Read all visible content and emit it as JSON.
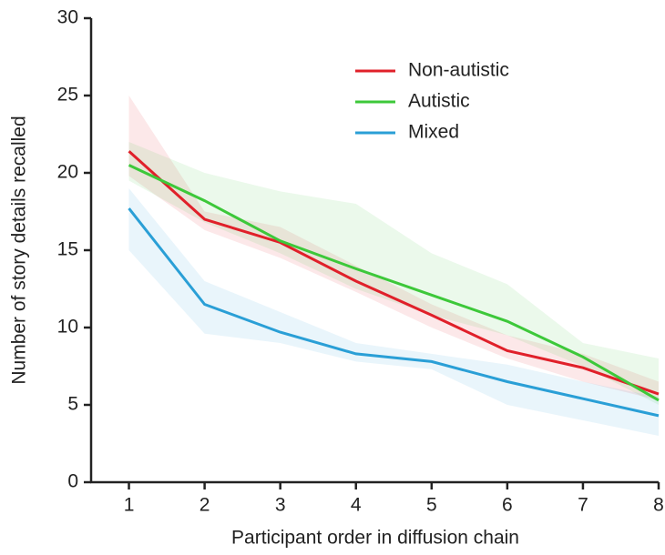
{
  "chart_data": {
    "type": "line",
    "x_label": "Participant order in diffusion chain",
    "y_label": "Number of story details recalled",
    "x": [
      1,
      2,
      3,
      4,
      5,
      6,
      7,
      8
    ],
    "xlim": [
      0.5,
      8
    ],
    "xticks": [
      1,
      2,
      3,
      4,
      5,
      6,
      7,
      8
    ],
    "ylim": [
      0,
      30
    ],
    "yticks": [
      0,
      5,
      10,
      15,
      20,
      25,
      30
    ],
    "legend": "upper right",
    "series": [
      {
        "name": "Non-autistic",
        "color": "#e0202a",
        "values": [
          21.4,
          17.0,
          15.5,
          13.0,
          10.8,
          8.5,
          7.4,
          5.7
        ],
        "lower": [
          19.8,
          16.3,
          14.5,
          12.3,
          10.0,
          8.0,
          6.5,
          5.3
        ],
        "upper": [
          25.0,
          17.5,
          16.5,
          14.0,
          11.5,
          9.5,
          8.3,
          6.5
        ]
      },
      {
        "name": "Autistic",
        "color": "#3dc83a",
        "values": [
          20.5,
          18.2,
          15.6,
          13.8,
          12.1,
          10.4,
          8.1,
          5.3
        ],
        "lower": [
          19.5,
          16.8,
          14.8,
          12.5,
          10.8,
          9.5,
          7.5,
          5.0
        ],
        "upper": [
          22.0,
          20.0,
          18.8,
          18.0,
          14.8,
          12.8,
          9.0,
          8.0
        ]
      },
      {
        "name": "Mixed",
        "color": "#2a9fd6",
        "values": [
          17.7,
          11.5,
          9.7,
          8.3,
          7.8,
          6.5,
          5.4,
          4.3
        ],
        "lower": [
          15.0,
          9.6,
          9.0,
          7.8,
          7.3,
          5.0,
          4.0,
          3.0
        ],
        "upper": [
          19.0,
          13.0,
          11.0,
          9.0,
          8.3,
          7.6,
          6.5,
          5.5
        ]
      }
    ]
  }
}
